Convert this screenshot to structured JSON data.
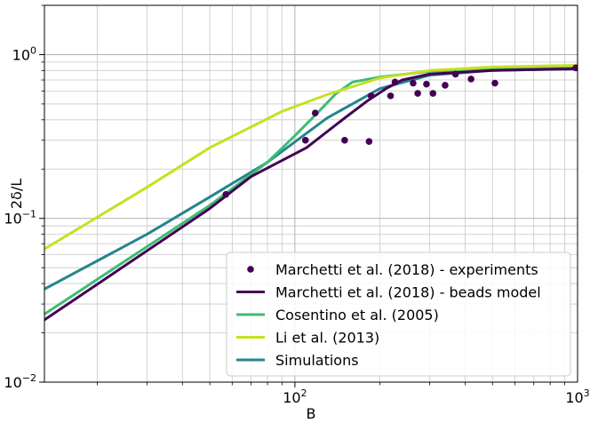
{
  "chart_data": {
    "type": "line",
    "xscale": "log",
    "yscale": "log",
    "xlim": [
      13,
      1000
    ],
    "ylim": [
      0.01,
      2.0
    ],
    "grid": "both-major-and-minor",
    "xlabel": "B",
    "ylabel": "2δ/L",
    "xticks": [
      {
        "value": 100,
        "base": "10",
        "exp": "2"
      },
      {
        "value": 1000,
        "base": "10",
        "exp": "3"
      }
    ],
    "yticks": [
      {
        "value": 0.01,
        "base": "10",
        "exp": "−2"
      },
      {
        "value": 0.1,
        "base": "10",
        "exp": "−1"
      },
      {
        "value": 1.0,
        "base": "10",
        "exp": "0"
      }
    ],
    "legend_position": "lower-right",
    "series": [
      {
        "name": "Marchetti et al. (2018) - experiments",
        "kind": "scatter",
        "color": "#440154",
        "x": [
          57,
          109,
          118,
          150,
          183,
          186,
          218,
          226,
          262,
          272,
          292,
          308,
          340,
          370,
          420,
          510,
          985
        ],
        "y": [
          0.14,
          0.3,
          0.44,
          0.3,
          0.295,
          0.56,
          0.56,
          0.68,
          0.67,
          0.58,
          0.66,
          0.58,
          0.65,
          0.76,
          0.71,
          0.67,
          0.83
        ]
      },
      {
        "name": "Marchetti et al. (2018) - beads model",
        "kind": "line",
        "color": "#440154",
        "x": [
          13,
          50,
          70,
          110,
          150,
          180,
          210,
          240,
          300,
          500,
          1000
        ],
        "y": [
          0.024,
          0.115,
          0.18,
          0.27,
          0.41,
          0.52,
          0.62,
          0.7,
          0.76,
          0.8,
          0.82
        ]
      },
      {
        "name": "Cosentino et al. (2005)",
        "kind": "line",
        "color": "#3dbc74",
        "x": [
          13,
          50,
          80,
          100,
          120,
          140,
          160,
          200,
          300,
          500,
          1000
        ],
        "y": [
          0.026,
          0.12,
          0.22,
          0.32,
          0.44,
          0.58,
          0.68,
          0.73,
          0.79,
          0.82,
          0.83
        ]
      },
      {
        "name": "Li et al. (2013)",
        "kind": "line",
        "color": "#c8e020",
        "x": [
          13,
          30,
          50,
          90,
          130,
          200,
          300,
          500,
          1000
        ],
        "y": [
          0.065,
          0.155,
          0.27,
          0.45,
          0.57,
          0.72,
          0.8,
          0.84,
          0.86
        ]
      },
      {
        "name": "Simulations",
        "kind": "line",
        "color": "#25858e",
        "x": [
          13,
          30,
          50,
          80,
          130,
          200,
          300,
          500,
          1000
        ],
        "y": [
          0.037,
          0.08,
          0.135,
          0.22,
          0.41,
          0.62,
          0.75,
          0.8,
          0.82
        ]
      }
    ]
  }
}
